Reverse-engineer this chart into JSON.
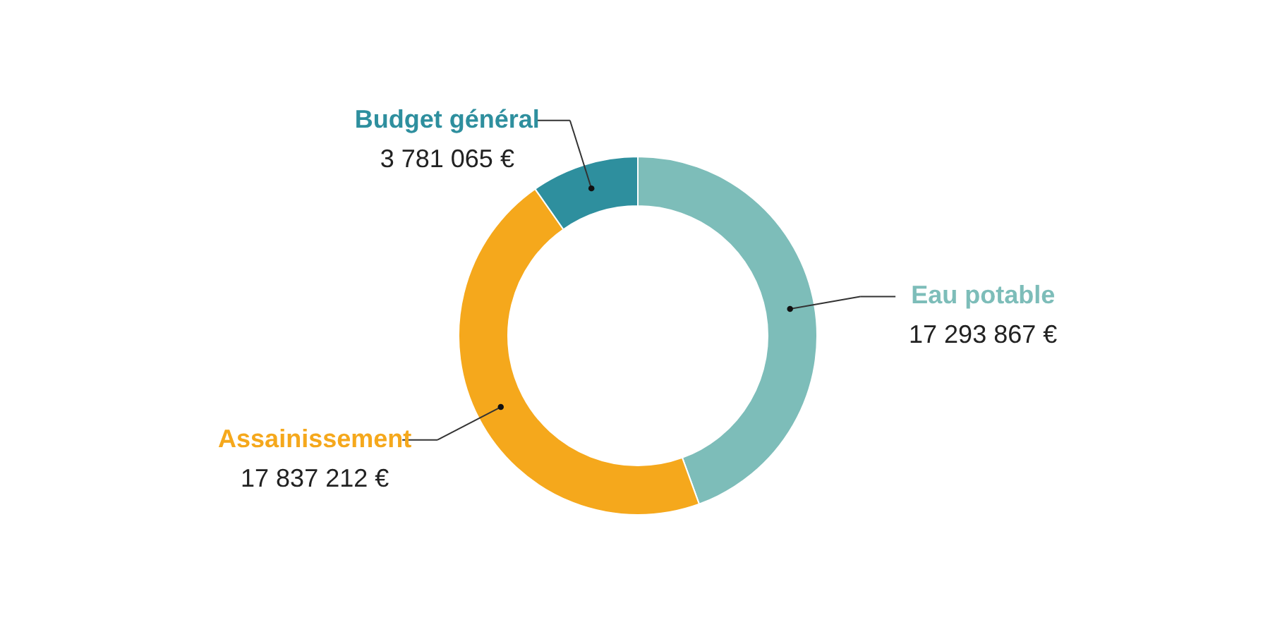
{
  "chart_data": {
    "type": "donut",
    "categories": [
      "Eau potable",
      "Assainissement",
      "Budget général"
    ],
    "values": [
      17293867,
      17837212,
      3781065
    ],
    "colors": [
      "#7dbdb9",
      "#f5a81c",
      "#2e8f9e"
    ],
    "value_labels": [
      "17 293 867 €",
      "17 837 212 €",
      "3 781 065 €"
    ]
  }
}
